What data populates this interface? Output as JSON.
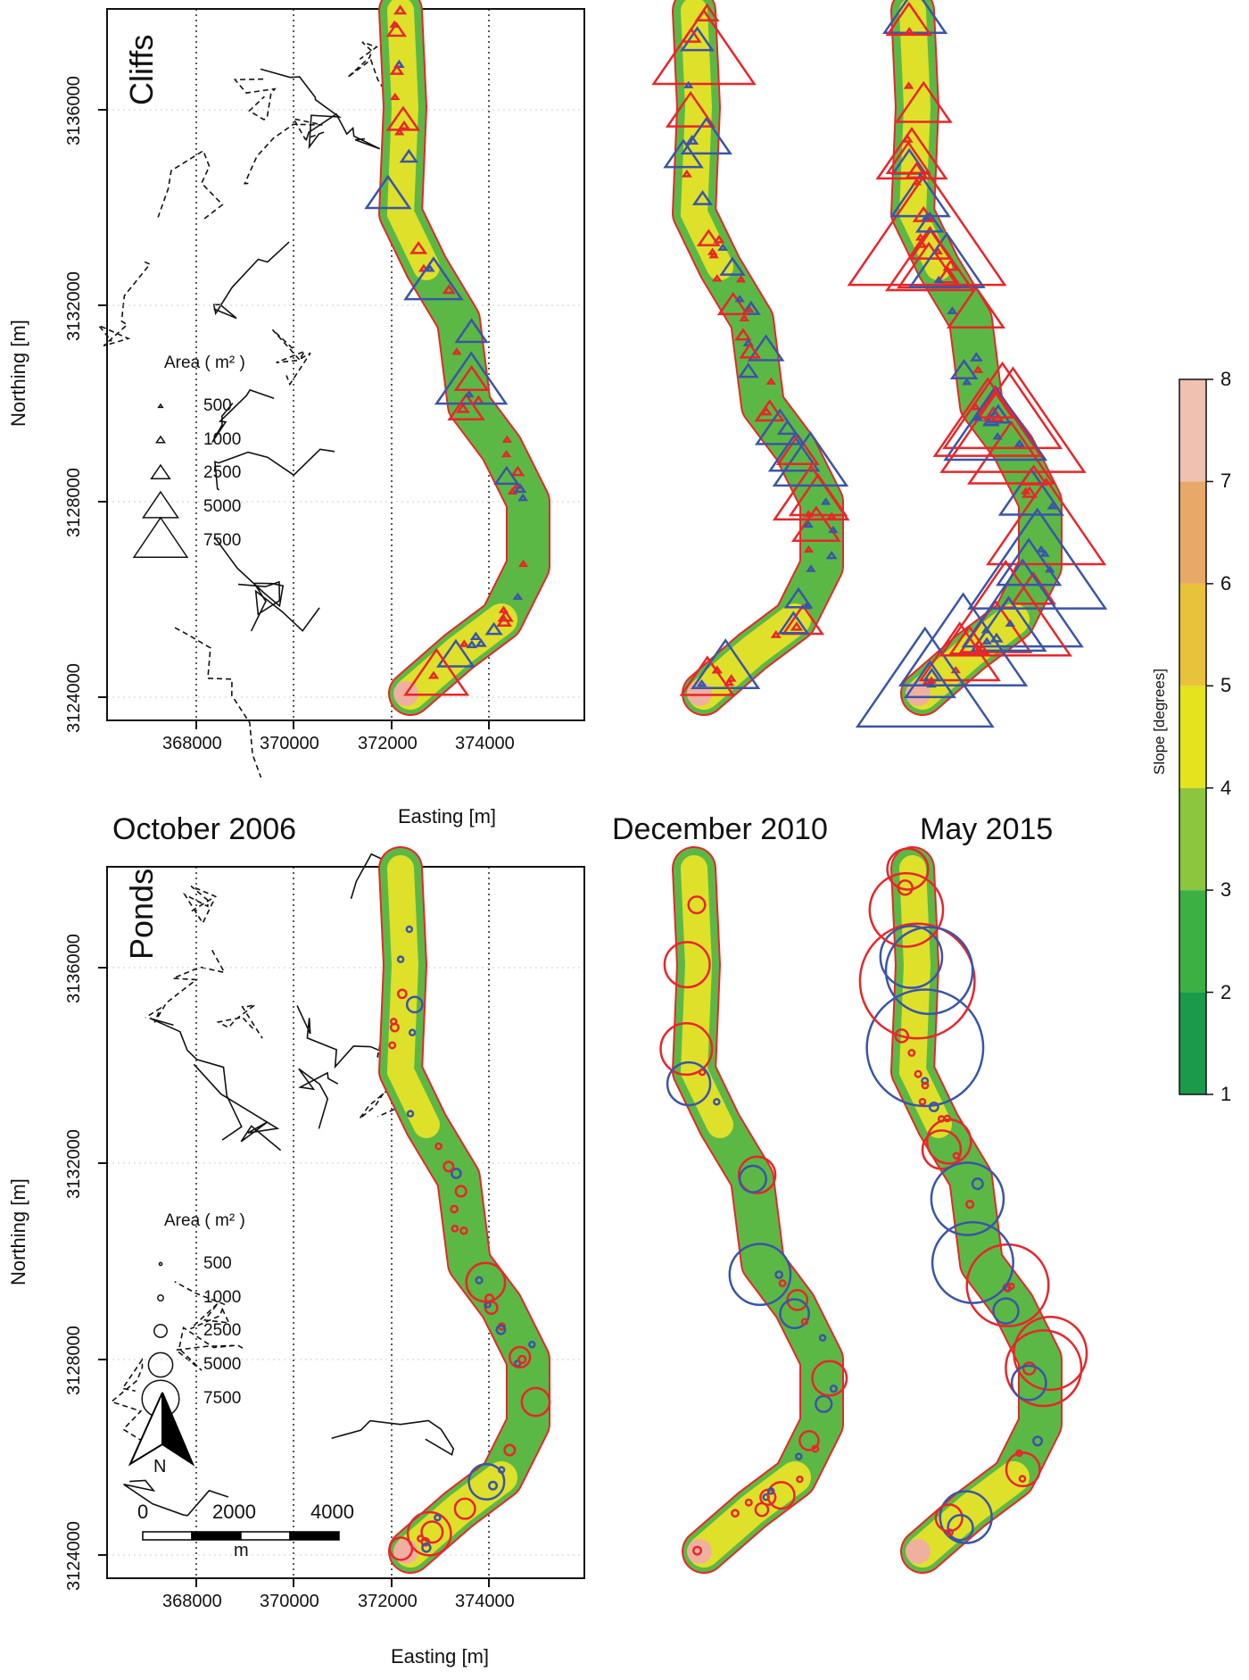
{
  "panels": {
    "top_label": "Cliffs",
    "bottom_label": "Ponds"
  },
  "dates": [
    "October 2006",
    "December 2010",
    "May 2015"
  ],
  "axes": {
    "xlabel": "Easting [m]",
    "ylabel": "Northing [m]",
    "xticks": [
      "368000",
      "370000",
      "372000",
      "374000"
    ],
    "yticks": [
      "3124000",
      "3128000",
      "3132000",
      "3136000"
    ]
  },
  "legend": {
    "title": "Area ( m² )",
    "sizes": [
      "500",
      "1000",
      "2500",
      "5000",
      "7500"
    ]
  },
  "colorbar": {
    "label": "Slope [degrees]",
    "ticks": [
      "1",
      "2",
      "3",
      "4",
      "5",
      "6",
      "7",
      "8"
    ],
    "colors": [
      "#1a9a4a",
      "#3cb043",
      "#8cc63f",
      "#e3e31e",
      "#e8c23a",
      "#e8a868",
      "#f0c0b0",
      "#f7f7f7"
    ]
  },
  "scalebar": {
    "labels": [
      "0",
      "2000",
      "4000"
    ],
    "unit": "m",
    "north": "N"
  },
  "marker_colors": {
    "gain": "#e8262a",
    "loss": "#3a55a8"
  }
}
